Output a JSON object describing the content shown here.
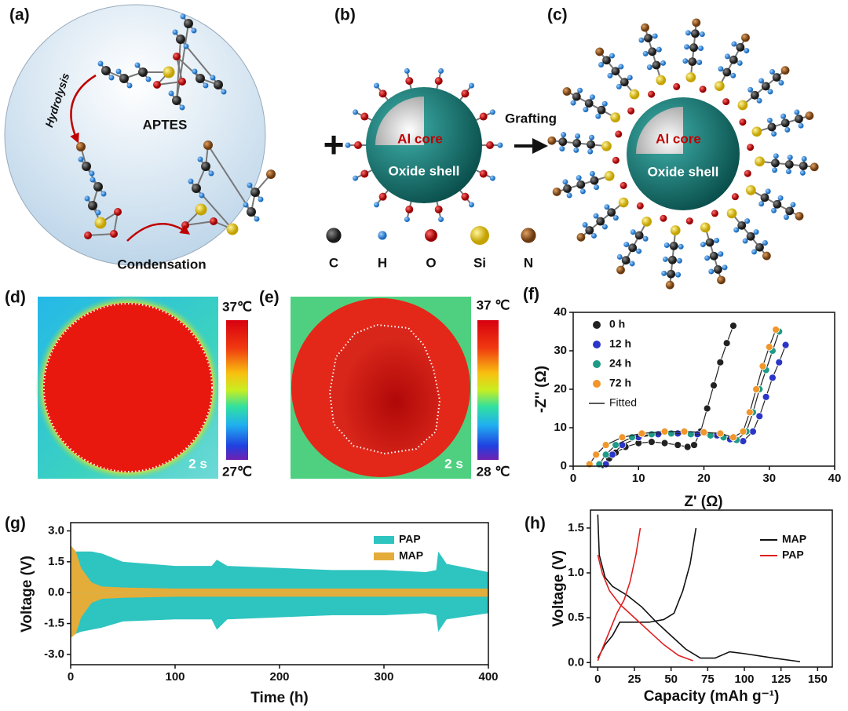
{
  "panels": {
    "a": {
      "label": "(a)",
      "hydrolysis": "Hydrolysis",
      "molecule": "APTES",
      "condensation": "Condensation"
    },
    "b": {
      "label": "(b)",
      "core": "Al core",
      "shell": "Oxide shell",
      "arrow": "Grafting"
    },
    "c": {
      "label": "(c)",
      "core": "Al core",
      "shell": "Oxide shell"
    },
    "d": {
      "label": "(d)",
      "max": "37℃",
      "min": "27℃",
      "time": "2 s"
    },
    "e": {
      "label": "(e)",
      "max": "37 ℃",
      "min": "28 ℃",
      "time": "2 s"
    },
    "f": {
      "label": "(f)"
    },
    "g": {
      "label": "(g)"
    },
    "h": {
      "label": "(h)"
    }
  },
  "atoms": [
    "C",
    "H",
    "O",
    "Si",
    "N"
  ],
  "chart_data": [
    {
      "type": "scatter",
      "x_label": "Z' (Ω)",
      "y_label": "-Z'' (Ω)",
      "xlim": [
        0,
        40
      ],
      "ylim": [
        0,
        40
      ],
      "xticks": [
        0,
        10,
        20,
        30,
        40
      ],
      "yticks": [
        0,
        10,
        20,
        30,
        40
      ],
      "fit_label": "Fitted",
      "fit_color": "#222222",
      "series": [
        {
          "name": "0 h",
          "color": "#222222",
          "x": [
            4.5,
            5.5,
            6.5,
            8,
            10,
            12,
            14,
            16,
            17.5,
            18.5,
            19.5,
            20.5,
            21.5,
            22.5,
            23.5,
            24.5
          ],
          "values": [
            0.3,
            2,
            3.5,
            5,
            6,
            6.3,
            6,
            5.5,
            5,
            5.5,
            9,
            15,
            21,
            27,
            32,
            36.5
          ]
        },
        {
          "name": "12 h",
          "color": "#2b35c8",
          "x": [
            5,
            6,
            7.5,
            10,
            13,
            16,
            19,
            22,
            24,
            26,
            27.5,
            28.5,
            29.5,
            30.5,
            31.5,
            32.5
          ],
          "values": [
            0.5,
            3,
            5.5,
            7.5,
            8.3,
            8.5,
            8.3,
            8,
            7,
            6.5,
            9,
            13,
            18,
            23,
            27,
            31.5
          ]
        },
        {
          "name": "24 h",
          "color": "#1f9a86",
          "x": [
            4,
            5,
            6.5,
            9,
            12,
            15,
            18,
            21,
            23,
            25,
            26.5,
            27.5,
            28.5,
            29.5,
            30.5,
            31.5
          ],
          "values": [
            0.5,
            3,
            5.5,
            7.5,
            8.3,
            8.5,
            8.3,
            8,
            7.5,
            6.8,
            9,
            14,
            20,
            25,
            30,
            35
          ]
        },
        {
          "name": "72 h",
          "color": "#f0962a",
          "x": [
            2.5,
            3.5,
            5,
            7.5,
            10.5,
            14,
            17,
            20,
            22.5,
            24.5,
            26,
            27,
            28,
            29,
            30,
            31
          ],
          "values": [
            0.5,
            3,
            5.5,
            7.5,
            8.5,
            9,
            9,
            8.8,
            8.5,
            7.5,
            9,
            14,
            20,
            26,
            31,
            35.5
          ]
        }
      ]
    },
    {
      "type": "area",
      "x_label": "Time (h)",
      "y_label": "Voltage (V)",
      "xlim": [
        0,
        400
      ],
      "ylim": [
        -3.5,
        3.4
      ],
      "xticks": [
        0,
        100,
        200,
        300,
        400
      ],
      "yticks": [
        {
          "value": 3.0,
          "label": "3.0"
        },
        1.5,
        {
          "value": 0.0,
          "label": "0.0"
        },
        -1.5,
        {
          "value": -3.0,
          "label": "-3.0"
        }
      ],
      "x": [
        0,
        5,
        10,
        20,
        30,
        50,
        100,
        135,
        140,
        150,
        200,
        250,
        300,
        340,
        350,
        352,
        360,
        400
      ],
      "series": [
        {
          "name": "PAP",
          "color": "#2ec4c0",
          "upper": [
            2.0,
            2.0,
            2.0,
            2.0,
            1.9,
            1.5,
            1.3,
            1.3,
            1.6,
            1.3,
            1.2,
            1.1,
            1.1,
            1.0,
            1.1,
            2.0,
            1.4,
            1.0
          ],
          "lower": [
            -2.0,
            -2.0,
            -1.9,
            -1.8,
            -1.7,
            -1.4,
            -1.3,
            -1.3,
            -1.8,
            -1.3,
            -1.2,
            -1.1,
            -1.1,
            -1.0,
            -1.1,
            -1.9,
            -1.3,
            -1.0
          ]
        },
        {
          "name": "MAP",
          "color": "#e4ad3a",
          "upper": [
            2.3,
            2.0,
            1.2,
            0.5,
            0.3,
            0.25,
            0.2,
            0.2,
            0.2,
            0.2,
            0.2,
            0.2,
            0.2,
            0.2,
            0.2,
            0.2,
            0.2,
            0.2
          ],
          "lower": [
            -2.2,
            -2.0,
            -1.2,
            -0.5,
            -0.3,
            -0.25,
            -0.2,
            -0.2,
            -0.2,
            -0.2,
            -0.2,
            -0.2,
            -0.2,
            -0.2,
            -0.2,
            -0.2,
            -0.2,
            -0.2
          ]
        }
      ]
    },
    {
      "type": "line",
      "x_label": "Capacity (mAh g⁻¹)",
      "y_label": "Voltage (V)",
      "xlim": [
        -5,
        160
      ],
      "ylim": [
        -0.05,
        1.7
      ],
      "xticks": [
        0,
        25,
        50,
        75,
        100,
        125,
        150
      ],
      "yticks": [
        {
          "value": 0.0,
          "label": "0.0"
        },
        0.5,
        {
          "value": 1.0,
          "label": "1.0"
        },
        1.5
      ],
      "series": [
        {
          "name": "MAP",
          "color": "#111111",
          "x": [
            0,
            1,
            5,
            10,
            20,
            30,
            40,
            50,
            60,
            70,
            80,
            90,
            100,
            120,
            138,
            null,
            0,
            5,
            10,
            15,
            25,
            35,
            45,
            52,
            58,
            63,
            67
          ],
          "values": [
            1.65,
            1.2,
            0.95,
            0.85,
            0.75,
            0.62,
            0.45,
            0.3,
            0.15,
            0.05,
            0.05,
            0.12,
            0.1,
            0.05,
            0.01,
            null,
            0.05,
            0.2,
            0.3,
            0.45,
            0.45,
            0.45,
            0.48,
            0.55,
            0.8,
            1.1,
            1.5
          ]
        },
        {
          "name": "PAP",
          "color": "#e02020",
          "x": [
            0,
            3,
            8,
            15,
            25,
            35,
            45,
            55,
            65,
            null,
            0,
            3,
            8,
            13,
            18,
            22,
            26,
            29
          ],
          "values": [
            1.2,
            1.0,
            0.8,
            0.65,
            0.5,
            0.35,
            0.2,
            0.08,
            0.02,
            null,
            0.02,
            0.15,
            0.35,
            0.55,
            0.7,
            0.9,
            1.2,
            1.5
          ]
        }
      ]
    }
  ]
}
